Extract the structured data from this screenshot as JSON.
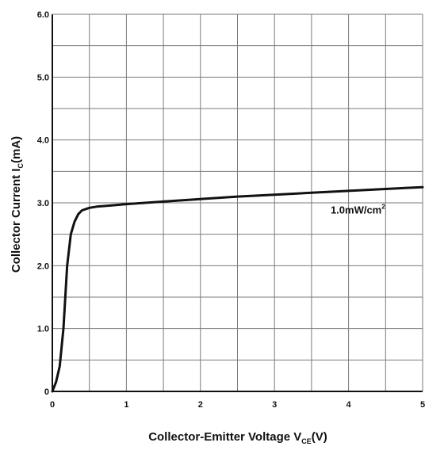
{
  "chart_data": {
    "type": "line",
    "title": "",
    "xlabel": {
      "main": "Collector-Emitter Voltage V",
      "sub": "CE",
      "unit": "(V)"
    },
    "ylabel": {
      "main": "Collector Current I",
      "sub": "C",
      "unit": "(mA)"
    },
    "xlim": [
      0,
      5
    ],
    "ylim": [
      0,
      6
    ],
    "x_ticks": [
      {
        "value": 0,
        "label": "0"
      },
      {
        "value": 1,
        "label": "1"
      },
      {
        "value": 2,
        "label": "2"
      },
      {
        "value": 3,
        "label": "3"
      },
      {
        "value": 4,
        "label": "4"
      },
      {
        "value": 5,
        "label": "5"
      }
    ],
    "y_ticks": [
      {
        "value": 0,
        "label": "0"
      },
      {
        "value": 1,
        "label": "1.0"
      },
      {
        "value": 2,
        "label": "2.0"
      },
      {
        "value": 3,
        "label": "3.0"
      },
      {
        "value": 4,
        "label": "4.0"
      },
      {
        "value": 5,
        "label": "5.0"
      },
      {
        "value": 6,
        "label": "6.0"
      }
    ],
    "grid": true,
    "x_minor_step": 0.5,
    "y_minor_step": 0.5,
    "series": [
      {
        "name": "",
        "color": "#111111",
        "annotation": {
          "base": "1.0mW/cm",
          "sup": "2",
          "at_x": 4.1,
          "at_y": 2.83
        },
        "x": [
          0,
          0.05,
          0.1,
          0.15,
          0.2,
          0.25,
          0.3,
          0.35,
          0.4,
          0.5,
          0.6,
          0.8,
          1.0,
          1.5,
          2.0,
          2.5,
          3.0,
          3.5,
          4.0,
          4.5,
          5.0
        ],
        "y": [
          0,
          0.15,
          0.4,
          1.0,
          2.0,
          2.5,
          2.7,
          2.82,
          2.88,
          2.92,
          2.94,
          2.96,
          2.98,
          3.02,
          3.06,
          3.1,
          3.13,
          3.16,
          3.19,
          3.22,
          3.25
        ]
      }
    ]
  }
}
